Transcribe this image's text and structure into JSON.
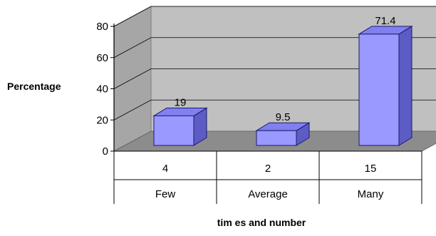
{
  "chart_data": {
    "type": "bar",
    "style": "3d-column",
    "categories": [
      "4",
      "2",
      "15"
    ],
    "category_labels": [
      "Few",
      "Average",
      "Many"
    ],
    "values": [
      19,
      9.5,
      71.4
    ],
    "data_labels": [
      "19",
      "9.5",
      "71.4"
    ],
    "title": "",
    "xlabel": "tim es and number",
    "ylabel": "Percentage",
    "ylim": [
      0,
      80
    ],
    "yticks": [
      "0",
      "20",
      "40",
      "60",
      "80"
    ],
    "grid": true,
    "legend": "none",
    "colors": {
      "bar_front": "#9999ff",
      "bar_top": "#8080f0",
      "bar_side": "#5c5cc4",
      "bar_outline": "#1a1a6e",
      "back_wall": "#c0c0c0",
      "side_wall": "#a6a6a6",
      "floor": "#8c8c8c",
      "grid": "#000000"
    }
  }
}
